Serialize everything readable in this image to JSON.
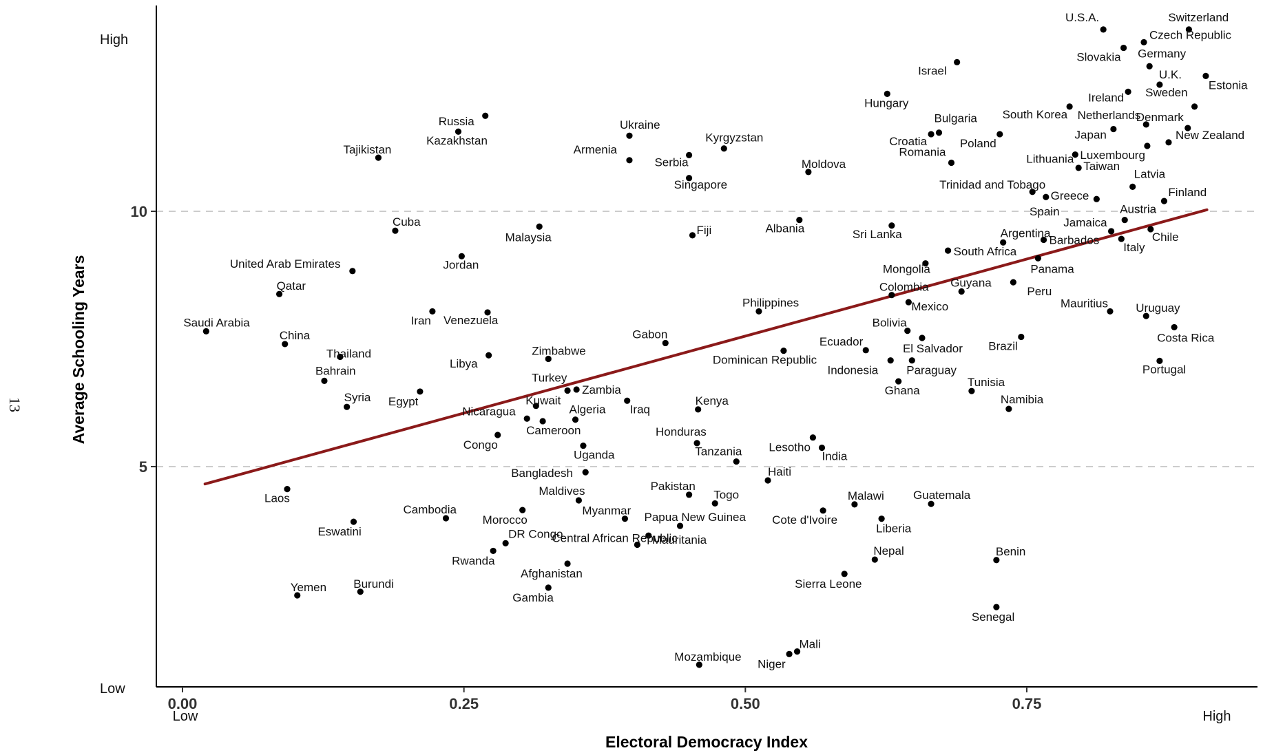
{
  "page_number": "13",
  "chart_data": {
    "type": "scatter",
    "xlabel": "Electoral Democracy Index",
    "ylabel": "Average Schooling Years",
    "xlim": [
      -0.05,
      0.95
    ],
    "ylim": [
      0.8,
      14.3
    ],
    "x_ticks": [
      0.0,
      0.25,
      0.5,
      0.75
    ],
    "x_tick_labels": [
      "0.00",
      "0.25",
      "0.50",
      "0.75"
    ],
    "y_ticks": [
      5,
      10
    ],
    "y_tick_labels": [
      "5",
      "10"
    ],
    "x_end_labels": {
      "low": "Low",
      "high": "High"
    },
    "y_end_labels": {
      "low": "Low",
      "high": "High"
    },
    "grid": "dashed horizontal lines at y = 5 and y = 10",
    "colors": {
      "points": "#000000",
      "fit_line": "#8b1a1a",
      "grid": "#cccccc"
    },
    "fit_line": {
      "x": [
        0.02,
        0.91
      ],
      "y": [
        4.66,
        10.03
      ]
    },
    "points": [
      {
        "name": "Switzerland",
        "x": 0.894,
        "y": 13.56
      },
      {
        "name": "U.S.A.",
        "x": 0.818,
        "y": 13.56
      },
      {
        "name": "Czech Republic",
        "x": 0.854,
        "y": 13.31
      },
      {
        "name": "Slovakia",
        "x": 0.836,
        "y": 13.2
      },
      {
        "name": "Germany",
        "x": 0.859,
        "y": 12.84
      },
      {
        "name": "Israel",
        "x": 0.688,
        "y": 12.92
      },
      {
        "name": "U.K.",
        "x": 0.868,
        "y": 12.48
      },
      {
        "name": "Estonia",
        "x": 0.909,
        "y": 12.65
      },
      {
        "name": "Ireland",
        "x": 0.84,
        "y": 12.34
      },
      {
        "name": "Sweden",
        "x": 0.899,
        "y": 12.05
      },
      {
        "name": "Hungary",
        "x": 0.626,
        "y": 12.3
      },
      {
        "name": "South Korea",
        "x": 0.788,
        "y": 12.05
      },
      {
        "name": "Netherlands",
        "x": 0.856,
        "y": 11.7
      },
      {
        "name": "Denmark",
        "x": 0.893,
        "y": 11.63
      },
      {
        "name": "Japan",
        "x": 0.827,
        "y": 11.61
      },
      {
        "name": "Bulgaria",
        "x": 0.672,
        "y": 11.54
      },
      {
        "name": "Croatia",
        "x": 0.665,
        "y": 11.51
      },
      {
        "name": "Poland",
        "x": 0.726,
        "y": 11.51
      },
      {
        "name": "New Zealand",
        "x": 0.876,
        "y": 11.35
      },
      {
        "name": "Luxembourg",
        "x": 0.857,
        "y": 11.28
      },
      {
        "name": "Russia",
        "x": 0.269,
        "y": 11.87
      },
      {
        "name": "Kazakhstan",
        "x": 0.245,
        "y": 11.56
      },
      {
        "name": "Ukraine",
        "x": 0.397,
        "y": 11.48
      },
      {
        "name": "Kyrgyzstan",
        "x": 0.481,
        "y": 11.23
      },
      {
        "name": "Armenia",
        "x": 0.397,
        "y": 11.0
      },
      {
        "name": "Serbia",
        "x": 0.45,
        "y": 11.1
      },
      {
        "name": "Singapore",
        "x": 0.45,
        "y": 10.65
      },
      {
        "name": "Tajikistan",
        "x": 0.174,
        "y": 11.05
      },
      {
        "name": "Lithuania",
        "x": 0.793,
        "y": 11.11
      },
      {
        "name": "Romania",
        "x": 0.683,
        "y": 10.95
      },
      {
        "name": "Taiwan",
        "x": 0.796,
        "y": 10.85
      },
      {
        "name": "Moldova",
        "x": 0.556,
        "y": 10.77
      },
      {
        "name": "Latvia",
        "x": 0.844,
        "y": 10.48
      },
      {
        "name": "Trinidad and Tobago",
        "x": 0.755,
        "y": 10.38
      },
      {
        "name": "Greece",
        "x": 0.812,
        "y": 10.24
      },
      {
        "name": "Spain",
        "x": 0.767,
        "y": 10.28
      },
      {
        "name": "Finland",
        "x": 0.872,
        "y": 10.2
      },
      {
        "name": "Austria",
        "x": 0.837,
        "y": 9.83
      },
      {
        "name": "Jamaica",
        "x": 0.825,
        "y": 9.61
      },
      {
        "name": "Chile",
        "x": 0.86,
        "y": 9.65
      },
      {
        "name": "Italy",
        "x": 0.834,
        "y": 9.46
      },
      {
        "name": "Cuba",
        "x": 0.189,
        "y": 9.62
      },
      {
        "name": "Malaysia",
        "x": 0.317,
        "y": 9.7
      },
      {
        "name": "Albania",
        "x": 0.548,
        "y": 9.83
      },
      {
        "name": "Fiji",
        "x": 0.453,
        "y": 9.53
      },
      {
        "name": "Sri Lanka",
        "x": 0.63,
        "y": 9.72
      },
      {
        "name": "Argentina",
        "x": 0.729,
        "y": 9.39
      },
      {
        "name": "Barbados",
        "x": 0.765,
        "y": 9.44
      },
      {
        "name": "South Africa",
        "x": 0.68,
        "y": 9.23
      },
      {
        "name": "Panama",
        "x": 0.76,
        "y": 9.08
      },
      {
        "name": "Mongolia",
        "x": 0.66,
        "y": 8.98
      },
      {
        "name": "United Arab Emirates",
        "x": 0.151,
        "y": 8.83
      },
      {
        "name": "Jordan",
        "x": 0.248,
        "y": 9.12
      },
      {
        "name": "Qatar",
        "x": 0.086,
        "y": 8.38
      },
      {
        "name": "Colombia",
        "x": 0.63,
        "y": 8.36
      },
      {
        "name": "Guyana",
        "x": 0.692,
        "y": 8.43
      },
      {
        "name": "Peru",
        "x": 0.738,
        "y": 8.61
      },
      {
        "name": "Mauritius",
        "x": 0.824,
        "y": 8.04
      },
      {
        "name": "Uruguay",
        "x": 0.856,
        "y": 7.95
      },
      {
        "name": "Philippines",
        "x": 0.512,
        "y": 8.04
      },
      {
        "name": "Mexico",
        "x": 0.645,
        "y": 8.22
      },
      {
        "name": "Bolivia",
        "x": 0.644,
        "y": 7.66
      },
      {
        "name": "Iran",
        "x": 0.222,
        "y": 8.04
      },
      {
        "name": "Venezuela",
        "x": 0.271,
        "y": 8.02
      },
      {
        "name": "Saudi Arabia",
        "x": 0.021,
        "y": 7.65
      },
      {
        "name": "Costa Rica",
        "x": 0.881,
        "y": 7.73
      },
      {
        "name": "Gabon",
        "x": 0.429,
        "y": 7.42
      },
      {
        "name": "El Salvador",
        "x": 0.657,
        "y": 7.52
      },
      {
        "name": "Brazil",
        "x": 0.745,
        "y": 7.54
      },
      {
        "name": "Ecuador",
        "x": 0.607,
        "y": 7.28
      },
      {
        "name": "Dominican Republic",
        "x": 0.534,
        "y": 7.27
      },
      {
        "name": "China",
        "x": 0.091,
        "y": 7.4
      },
      {
        "name": "Thailand",
        "x": 0.14,
        "y": 7.15
      },
      {
        "name": "Zimbabwe",
        "x": 0.325,
        "y": 7.11
      },
      {
        "name": "Libya",
        "x": 0.272,
        "y": 7.18
      },
      {
        "name": "Indonesia",
        "x": 0.629,
        "y": 7.08
      },
      {
        "name": "Paraguay",
        "x": 0.648,
        "y": 7.08
      },
      {
        "name": "Portugal",
        "x": 0.868,
        "y": 7.07
      },
      {
        "name": "Bahrain",
        "x": 0.126,
        "y": 6.68
      },
      {
        "name": "Ghana",
        "x": 0.636,
        "y": 6.67
      },
      {
        "name": "Tunisia",
        "x": 0.701,
        "y": 6.48
      },
      {
        "name": "Egypt",
        "x": 0.211,
        "y": 6.47
      },
      {
        "name": "Turkey",
        "x": 0.342,
        "y": 6.49
      },
      {
        "name": "Zambia",
        "x": 0.35,
        "y": 6.51
      },
      {
        "name": "Kuwait",
        "x": 0.314,
        "y": 6.19
      },
      {
        "name": "Iraq",
        "x": 0.395,
        "y": 6.29
      },
      {
        "name": "Syria",
        "x": 0.146,
        "y": 6.17
      },
      {
        "name": "Kenya",
        "x": 0.458,
        "y": 6.12
      },
      {
        "name": "Namibia",
        "x": 0.734,
        "y": 6.13
      },
      {
        "name": "Algeria",
        "x": 0.349,
        "y": 5.92
      },
      {
        "name": "Nicaragua",
        "x": 0.306,
        "y": 5.94
      },
      {
        "name": "Cameroon",
        "x": 0.32,
        "y": 5.89
      },
      {
        "name": "Congo",
        "x": 0.28,
        "y": 5.62
      },
      {
        "name": "Lesotho",
        "x": 0.56,
        "y": 5.57
      },
      {
        "name": "Honduras",
        "x": 0.457,
        "y": 5.46
      },
      {
        "name": "Uganda",
        "x": 0.356,
        "y": 5.41
      },
      {
        "name": "India",
        "x": 0.568,
        "y": 5.37
      },
      {
        "name": "Tanzania",
        "x": 0.492,
        "y": 5.1
      },
      {
        "name": "Bangladesh",
        "x": 0.358,
        "y": 4.89
      },
      {
        "name": "Haiti",
        "x": 0.52,
        "y": 4.73
      },
      {
        "name": "Laos",
        "x": 0.093,
        "y": 4.56
      },
      {
        "name": "Maldives",
        "x": 0.352,
        "y": 4.34
      },
      {
        "name": "Pakistan",
        "x": 0.45,
        "y": 4.45
      },
      {
        "name": "Togo",
        "x": 0.473,
        "y": 4.28
      },
      {
        "name": "Malawi",
        "x": 0.597,
        "y": 4.26
      },
      {
        "name": "Guatemala",
        "x": 0.665,
        "y": 4.27
      },
      {
        "name": "Cambodia",
        "x": 0.234,
        "y": 3.99
      },
      {
        "name": "Morocco",
        "x": 0.302,
        "y": 4.15
      },
      {
        "name": "Myanmar",
        "x": 0.393,
        "y": 3.98
      },
      {
        "name": "Papua New Guinea",
        "x": 0.442,
        "y": 3.84
      },
      {
        "name": "Cote d'Ivoire",
        "x": 0.569,
        "y": 4.14
      },
      {
        "name": "Liberia",
        "x": 0.621,
        "y": 3.98
      },
      {
        "name": "Eswatini",
        "x": 0.152,
        "y": 3.92
      },
      {
        "name": "DR Congo",
        "x": 0.287,
        "y": 3.5
      },
      {
        "name": "Mauritania",
        "x": 0.414,
        "y": 3.65
      },
      {
        "name": "Rwanda",
        "x": 0.276,
        "y": 3.35
      },
      {
        "name": "Central African Republic",
        "x": 0.404,
        "y": 3.47
      },
      {
        "name": "Nepal",
        "x": 0.615,
        "y": 3.18
      },
      {
        "name": "Benin",
        "x": 0.723,
        "y": 3.17
      },
      {
        "name": "Afghanistan",
        "x": 0.342,
        "y": 3.1
      },
      {
        "name": "Sierra Leone",
        "x": 0.588,
        "y": 2.9
      },
      {
        "name": "Gambia",
        "x": 0.325,
        "y": 2.63
      },
      {
        "name": "Yemen",
        "x": 0.102,
        "y": 2.48
      },
      {
        "name": "Burundi",
        "x": 0.158,
        "y": 2.55
      },
      {
        "name": "Senegal",
        "x": 0.723,
        "y": 2.25
      },
      {
        "name": "Mali",
        "x": 0.546,
        "y": 1.38
      },
      {
        "name": "Niger",
        "x": 0.539,
        "y": 1.33
      },
      {
        "name": "Mozambique",
        "x": 0.459,
        "y": 1.12
      }
    ]
  }
}
